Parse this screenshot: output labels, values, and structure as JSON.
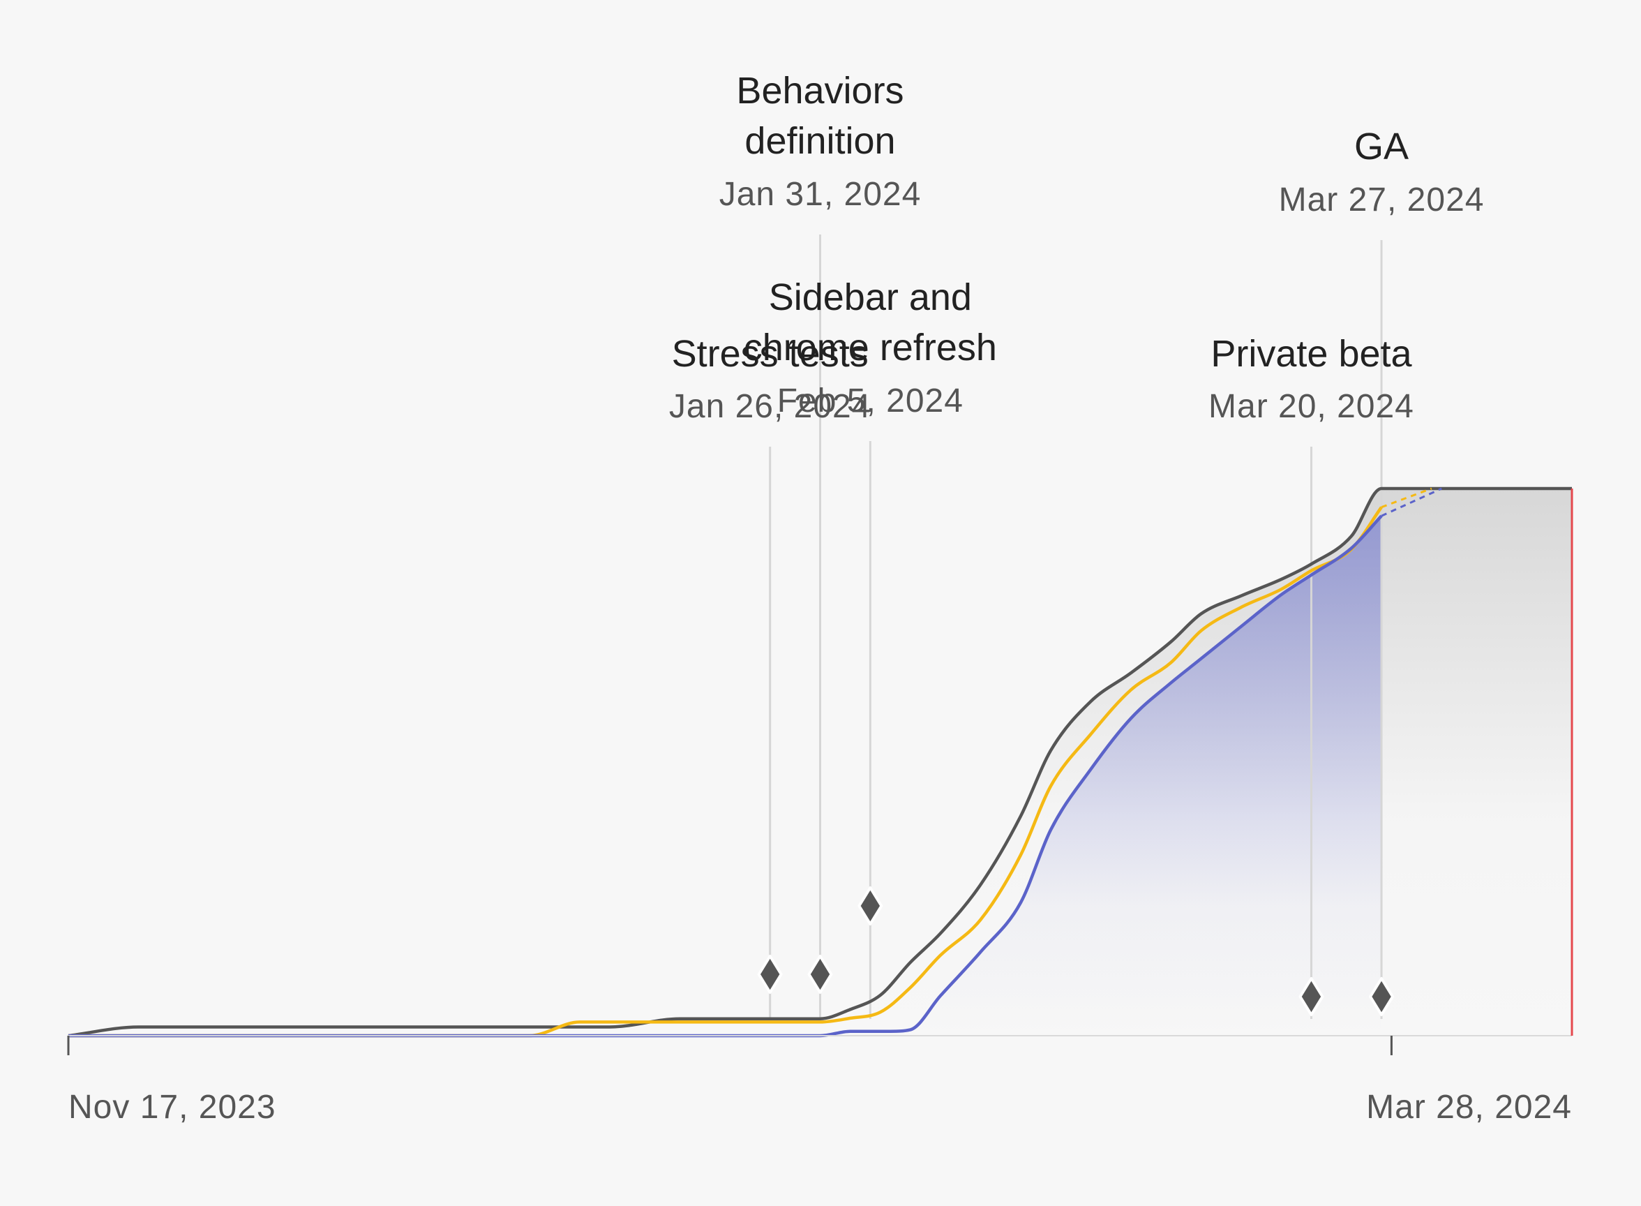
{
  "chart_data": {
    "type": "area",
    "title": "",
    "xlabel": "",
    "ylabel": "",
    "x_range": [
      "Nov 17, 2023",
      "Apr 15, 2024"
    ],
    "ylim": [
      0,
      100
    ],
    "x_axis_labels": {
      "start": "Nov 17, 2023",
      "end": "Mar 28, 2024"
    },
    "today": "Apr 15, 2024",
    "colors": {
      "total": "#555555",
      "in_progress": "#f5b914",
      "completed": "#5b63c9",
      "today_line": "#e5484d",
      "total_fill": "#cfcfcf"
    },
    "series": [
      {
        "name": "total",
        "x": [
          "Nov 17, 2023",
          "Nov 24, 2023",
          "Dec 1, 2023",
          "Dec 15, 2023",
          "Jan 1, 2024",
          "Jan 10, 2024",
          "Jan 17, 2024",
          "Jan 26, 2024",
          "Jan 31, 2024",
          "Feb 3, 2024",
          "Feb 6, 2024",
          "Feb 9, 2024",
          "Feb 12, 2024",
          "Feb 16, 2024",
          "Feb 20, 2024",
          "Feb 23, 2024",
          "Feb 27, 2024",
          "Mar 2, 2024",
          "Mar 6, 2024",
          "Mar 9, 2024",
          "Mar 13, 2024",
          "Mar 17, 2024",
          "Mar 20, 2024",
          "Mar 24, 2024",
          "Mar 27, 2024",
          "Apr 15, 2024"
        ],
        "values": [
          0,
          1.6,
          1.6,
          1.6,
          1.6,
          1.6,
          3.1,
          3.1,
          3.1,
          4.8,
          7.4,
          13.4,
          18.7,
          27.6,
          40.1,
          52.1,
          61.1,
          66.3,
          72.0,
          77.1,
          80.4,
          83.4,
          86.2,
          91.3,
          100,
          100
        ]
      },
      {
        "name": "in_progress",
        "x": [
          "Nov 17, 2023",
          "Jan 2, 2024",
          "Jan 7, 2024",
          "Jan 31, 2024",
          "Feb 3, 2024",
          "Feb 6, 2024",
          "Feb 9, 2024",
          "Feb 12, 2024",
          "Feb 16, 2024",
          "Feb 20, 2024",
          "Feb 23, 2024",
          "Feb 27, 2024",
          "Mar 2, 2024",
          "Mar 6, 2024",
          "Mar 9, 2024",
          "Mar 13, 2024",
          "Mar 17, 2024",
          "Mar 20, 2024",
          "Mar 24, 2024",
          "Mar 27, 2024",
          "Apr 1, 2024"
        ],
        "values": [
          0,
          0,
          2.5,
          2.5,
          3.2,
          4.3,
          8.8,
          14.7,
          21.2,
          33.0,
          45.6,
          55.1,
          63.2,
          68.2,
          74.0,
          78.3,
          81.6,
          85.0,
          88.9,
          96.6,
          100
        ]
      },
      {
        "name": "completed",
        "x": [
          "Nov 17, 2023",
          "Jan 31, 2024",
          "Feb 3, 2024",
          "Feb 7, 2024",
          "Feb 9, 2024",
          "Feb 12, 2024",
          "Feb 16, 2024",
          "Feb 20, 2024",
          "Feb 23, 2024",
          "Feb 27, 2024",
          "Mar 2, 2024",
          "Mar 6, 2024",
          "Mar 9, 2024",
          "Mar 13, 2024",
          "Mar 17, 2024",
          "Mar 20, 2024",
          "Mar 24, 2024",
          "Mar 27, 2024",
          "Apr 2, 2024"
        ],
        "values": [
          0,
          0,
          0.8,
          0.8,
          1.1,
          7.3,
          15.3,
          24.3,
          37.6,
          48.7,
          58.0,
          64.5,
          68.9,
          74.8,
          80.6,
          84.2,
          89.1,
          95.0,
          100
        ]
      }
    ],
    "annotations": [
      {
        "title_lines": [
          "Stress tests"
        ],
        "date": "Jan 26, 2024"
      },
      {
        "title_lines": [
          "Behaviors",
          "definition"
        ],
        "date": "Jan 31, 2024"
      },
      {
        "title_lines": [
          "Sidebar and",
          "chrome refresh"
        ],
        "date": "Feb 5, 2024"
      },
      {
        "title_lines": [
          "Private beta"
        ],
        "date": "Mar 20, 2024"
      },
      {
        "title_lines": [
          "GA"
        ],
        "date": "Mar 27, 2024"
      }
    ]
  }
}
